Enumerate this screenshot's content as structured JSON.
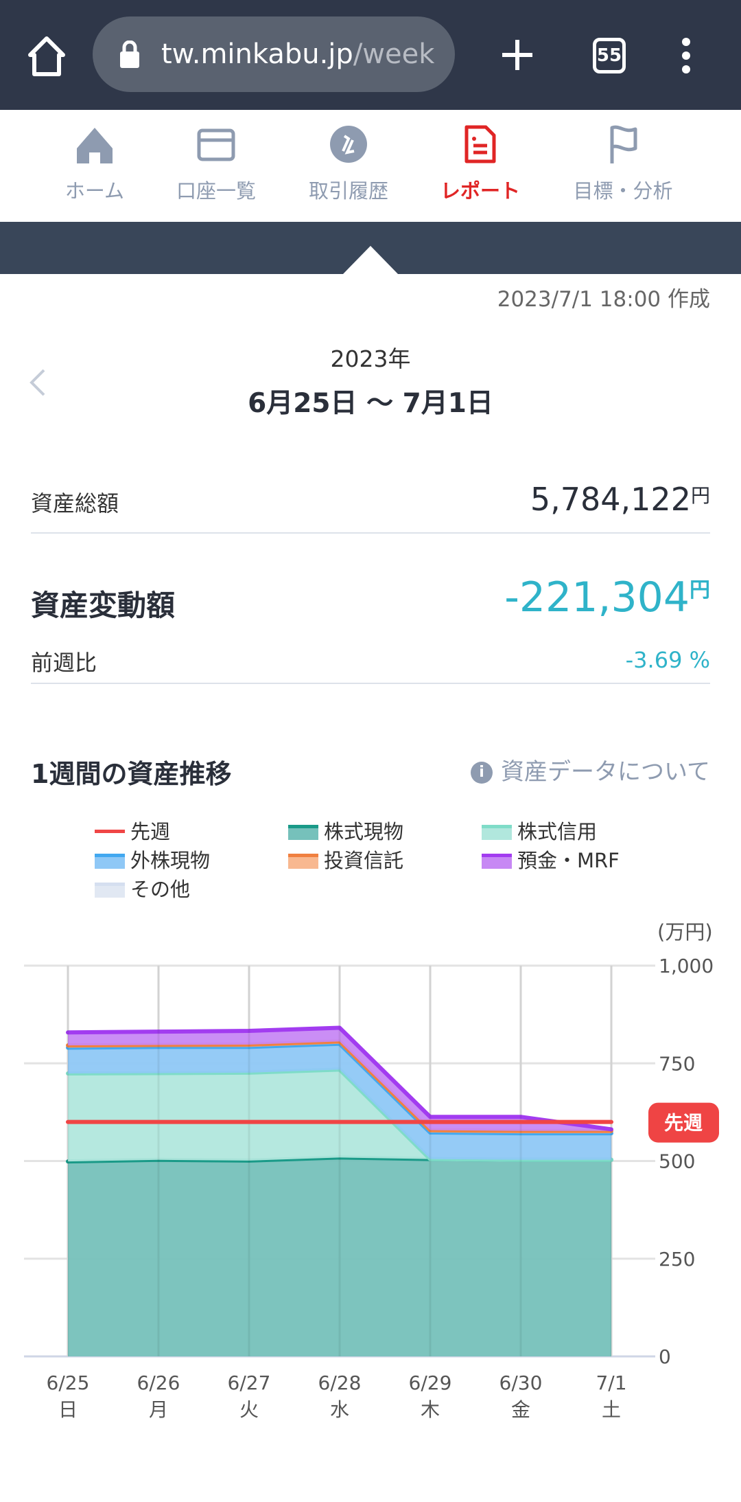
{
  "browser": {
    "url_host": "tw.minkabu.jp",
    "url_path": "/week",
    "tab_count": "55"
  },
  "nav": [
    {
      "label": "ホーム",
      "icon": "home-icon"
    },
    {
      "label": "口座一覧",
      "icon": "card-icon"
    },
    {
      "label": "取引履歴",
      "icon": "history-icon"
    },
    {
      "label": "レポート",
      "icon": "report-icon",
      "active": true
    },
    {
      "label": "目標・分析",
      "icon": "flag-icon"
    }
  ],
  "report": {
    "created": "2023/7/1 18:00 作成",
    "year": "2023年",
    "range": "6月25日 〜 7月1日"
  },
  "summary": {
    "total_label": "資産総額",
    "total_value": "5,784,122",
    "yen": "円",
    "change_label": "資産変動額",
    "change_value": "-221,304",
    "ratio_label": "前週比",
    "ratio_value": "-3.69",
    "pct": "%"
  },
  "colors": {
    "accent": "#2fb3c9",
    "brand_red": "#e02525"
  },
  "chart_section": {
    "title": "1週間の資産推移",
    "info_link": "資産データについて",
    "unit": "(万円)",
    "last_week_badge": "先週"
  },
  "chart_data": {
    "type": "area",
    "stacked": true,
    "categories": [
      "6/25",
      "6/26",
      "6/27",
      "6/28",
      "6/29",
      "6/30",
      "7/1"
    ],
    "weekdays": [
      "日",
      "月",
      "火",
      "水",
      "木",
      "金",
      "土"
    ],
    "ylim": [
      0,
      1000
    ],
    "yticks": [
      "1,000",
      "750",
      "500",
      "250",
      "0"
    ],
    "ytick_values": [
      1000,
      750,
      500,
      250,
      0
    ],
    "ylabel": "(万円)",
    "grid": true,
    "legend_position": "top",
    "last_week": {
      "name": "先週",
      "value": 600,
      "color": "#f04545"
    },
    "series": [
      {
        "name": "株式現物",
        "values": [
          499,
          503,
          501,
          509,
          505,
          503,
          503
        ],
        "line": "#1a9a88",
        "fill": "#76c1bb"
      },
      {
        "name": "株式信用",
        "values": [
          225,
          222,
          225,
          225,
          0,
          0,
          0
        ],
        "line": "#7fdcc8",
        "fill": "#b1e7dd"
      },
      {
        "name": "外株現物",
        "values": [
          66,
          67,
          66,
          66,
          68,
          68,
          68
        ],
        "line": "#42a8f0",
        "fill": "#8fc8f6"
      },
      {
        "name": "投資信託",
        "values": [
          6,
          5,
          6,
          6,
          6,
          6,
          6
        ],
        "line": "#f08040",
        "fill": "#f8b890"
      },
      {
        "name": "預金・MRF",
        "values": [
          33,
          34,
          35,
          35,
          34,
          36,
          4
        ],
        "line": "#a23cf0",
        "fill": "#c788f4"
      },
      {
        "name": "その他",
        "values": [
          0,
          0,
          0,
          0,
          0,
          0,
          0
        ],
        "line": "#d5dff0",
        "fill": "#e1e8f3"
      }
    ]
  }
}
